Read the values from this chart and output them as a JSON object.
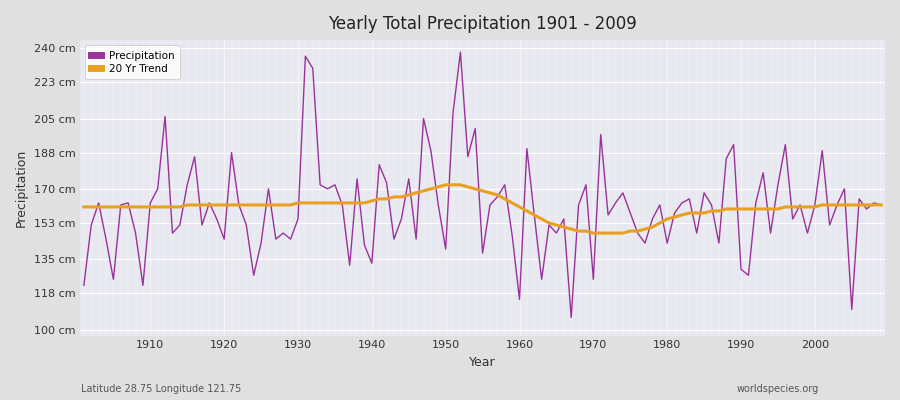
{
  "title": "Yearly Total Precipitation 1901 - 2009",
  "xlabel": "Year",
  "ylabel": "Precipitation",
  "subtitle_left": "Latitude 28.75 Longitude 121.75",
  "subtitle_right": "worldspecies.org",
  "years": [
    1901,
    1902,
    1903,
    1904,
    1905,
    1906,
    1907,
    1908,
    1909,
    1910,
    1911,
    1912,
    1913,
    1914,
    1915,
    1916,
    1917,
    1918,
    1919,
    1920,
    1921,
    1922,
    1923,
    1924,
    1925,
    1926,
    1927,
    1928,
    1929,
    1930,
    1931,
    1932,
    1933,
    1934,
    1935,
    1936,
    1937,
    1938,
    1939,
    1940,
    1941,
    1942,
    1943,
    1944,
    1945,
    1946,
    1947,
    1948,
    1949,
    1950,
    1951,
    1952,
    1953,
    1954,
    1955,
    1956,
    1957,
    1958,
    1959,
    1960,
    1961,
    1962,
    1963,
    1964,
    1965,
    1966,
    1967,
    1968,
    1969,
    1970,
    1971,
    1972,
    1973,
    1974,
    1975,
    1976,
    1977,
    1978,
    1979,
    1980,
    1981,
    1982,
    1983,
    1984,
    1985,
    1986,
    1987,
    1988,
    1989,
    1990,
    1991,
    1992,
    1993,
    1994,
    1995,
    1996,
    1997,
    1998,
    1999,
    2000,
    2001,
    2002,
    2003,
    2004,
    2005,
    2006,
    2007,
    2008,
    2009
  ],
  "precip": [
    122,
    152,
    163,
    145,
    125,
    162,
    163,
    148,
    122,
    163,
    170,
    206,
    148,
    152,
    172,
    186,
    152,
    163,
    155,
    145,
    188,
    162,
    152,
    127,
    143,
    170,
    145,
    148,
    145,
    155,
    236,
    230,
    172,
    170,
    172,
    162,
    132,
    175,
    142,
    133,
    182,
    173,
    145,
    155,
    175,
    145,
    205,
    189,
    162,
    140,
    208,
    238,
    186,
    200,
    138,
    162,
    166,
    172,
    147,
    115,
    190,
    157,
    125,
    152,
    148,
    155,
    106,
    162,
    172,
    125,
    197,
    157,
    163,
    168,
    158,
    148,
    143,
    155,
    162,
    143,
    158,
    163,
    165,
    148,
    168,
    162,
    143,
    185,
    192,
    130,
    127,
    163,
    178,
    148,
    172,
    192,
    155,
    162,
    148,
    162,
    189,
    152,
    162,
    170,
    110,
    165,
    160,
    163,
    162
  ],
  "trend": [
    161,
    161,
    161,
    161,
    161,
    161,
    161,
    161,
    161,
    161,
    161,
    161,
    161,
    161,
    162,
    162,
    162,
    162,
    162,
    162,
    162,
    162,
    162,
    162,
    162,
    162,
    162,
    162,
    162,
    163,
    163,
    163,
    163,
    163,
    163,
    163,
    163,
    163,
    163,
    164,
    165,
    165,
    166,
    166,
    167,
    168,
    169,
    170,
    171,
    172,
    172,
    172,
    171,
    170,
    169,
    168,
    167,
    165,
    163,
    161,
    159,
    157,
    155,
    153,
    152,
    151,
    150,
    149,
    149,
    148,
    148,
    148,
    148,
    148,
    149,
    149,
    150,
    151,
    153,
    155,
    156,
    157,
    158,
    158,
    158,
    159,
    159,
    160,
    160,
    160,
    160,
    160,
    160,
    160,
    160,
    161,
    161,
    161,
    161,
    161,
    162,
    162,
    162,
    162,
    162,
    162,
    162,
    162,
    162
  ],
  "precip_color": "#993399",
  "trend_color": "#E8A020",
  "fig_color": "#E0E0E0",
  "plot_bg_color": "#E8E8F0",
  "grid_color": "#FFFFFF",
  "yticks": [
    100,
    118,
    135,
    153,
    170,
    188,
    205,
    223,
    240
  ],
  "ytick_labels": [
    "100 cm",
    "118 cm",
    "135 cm",
    "153 cm",
    "170 cm",
    "188 cm",
    "205 cm",
    "223 cm",
    "240 cm"
  ],
  "ylim": [
    97,
    244
  ],
  "xlim": [
    1900.5,
    2009.5
  ]
}
